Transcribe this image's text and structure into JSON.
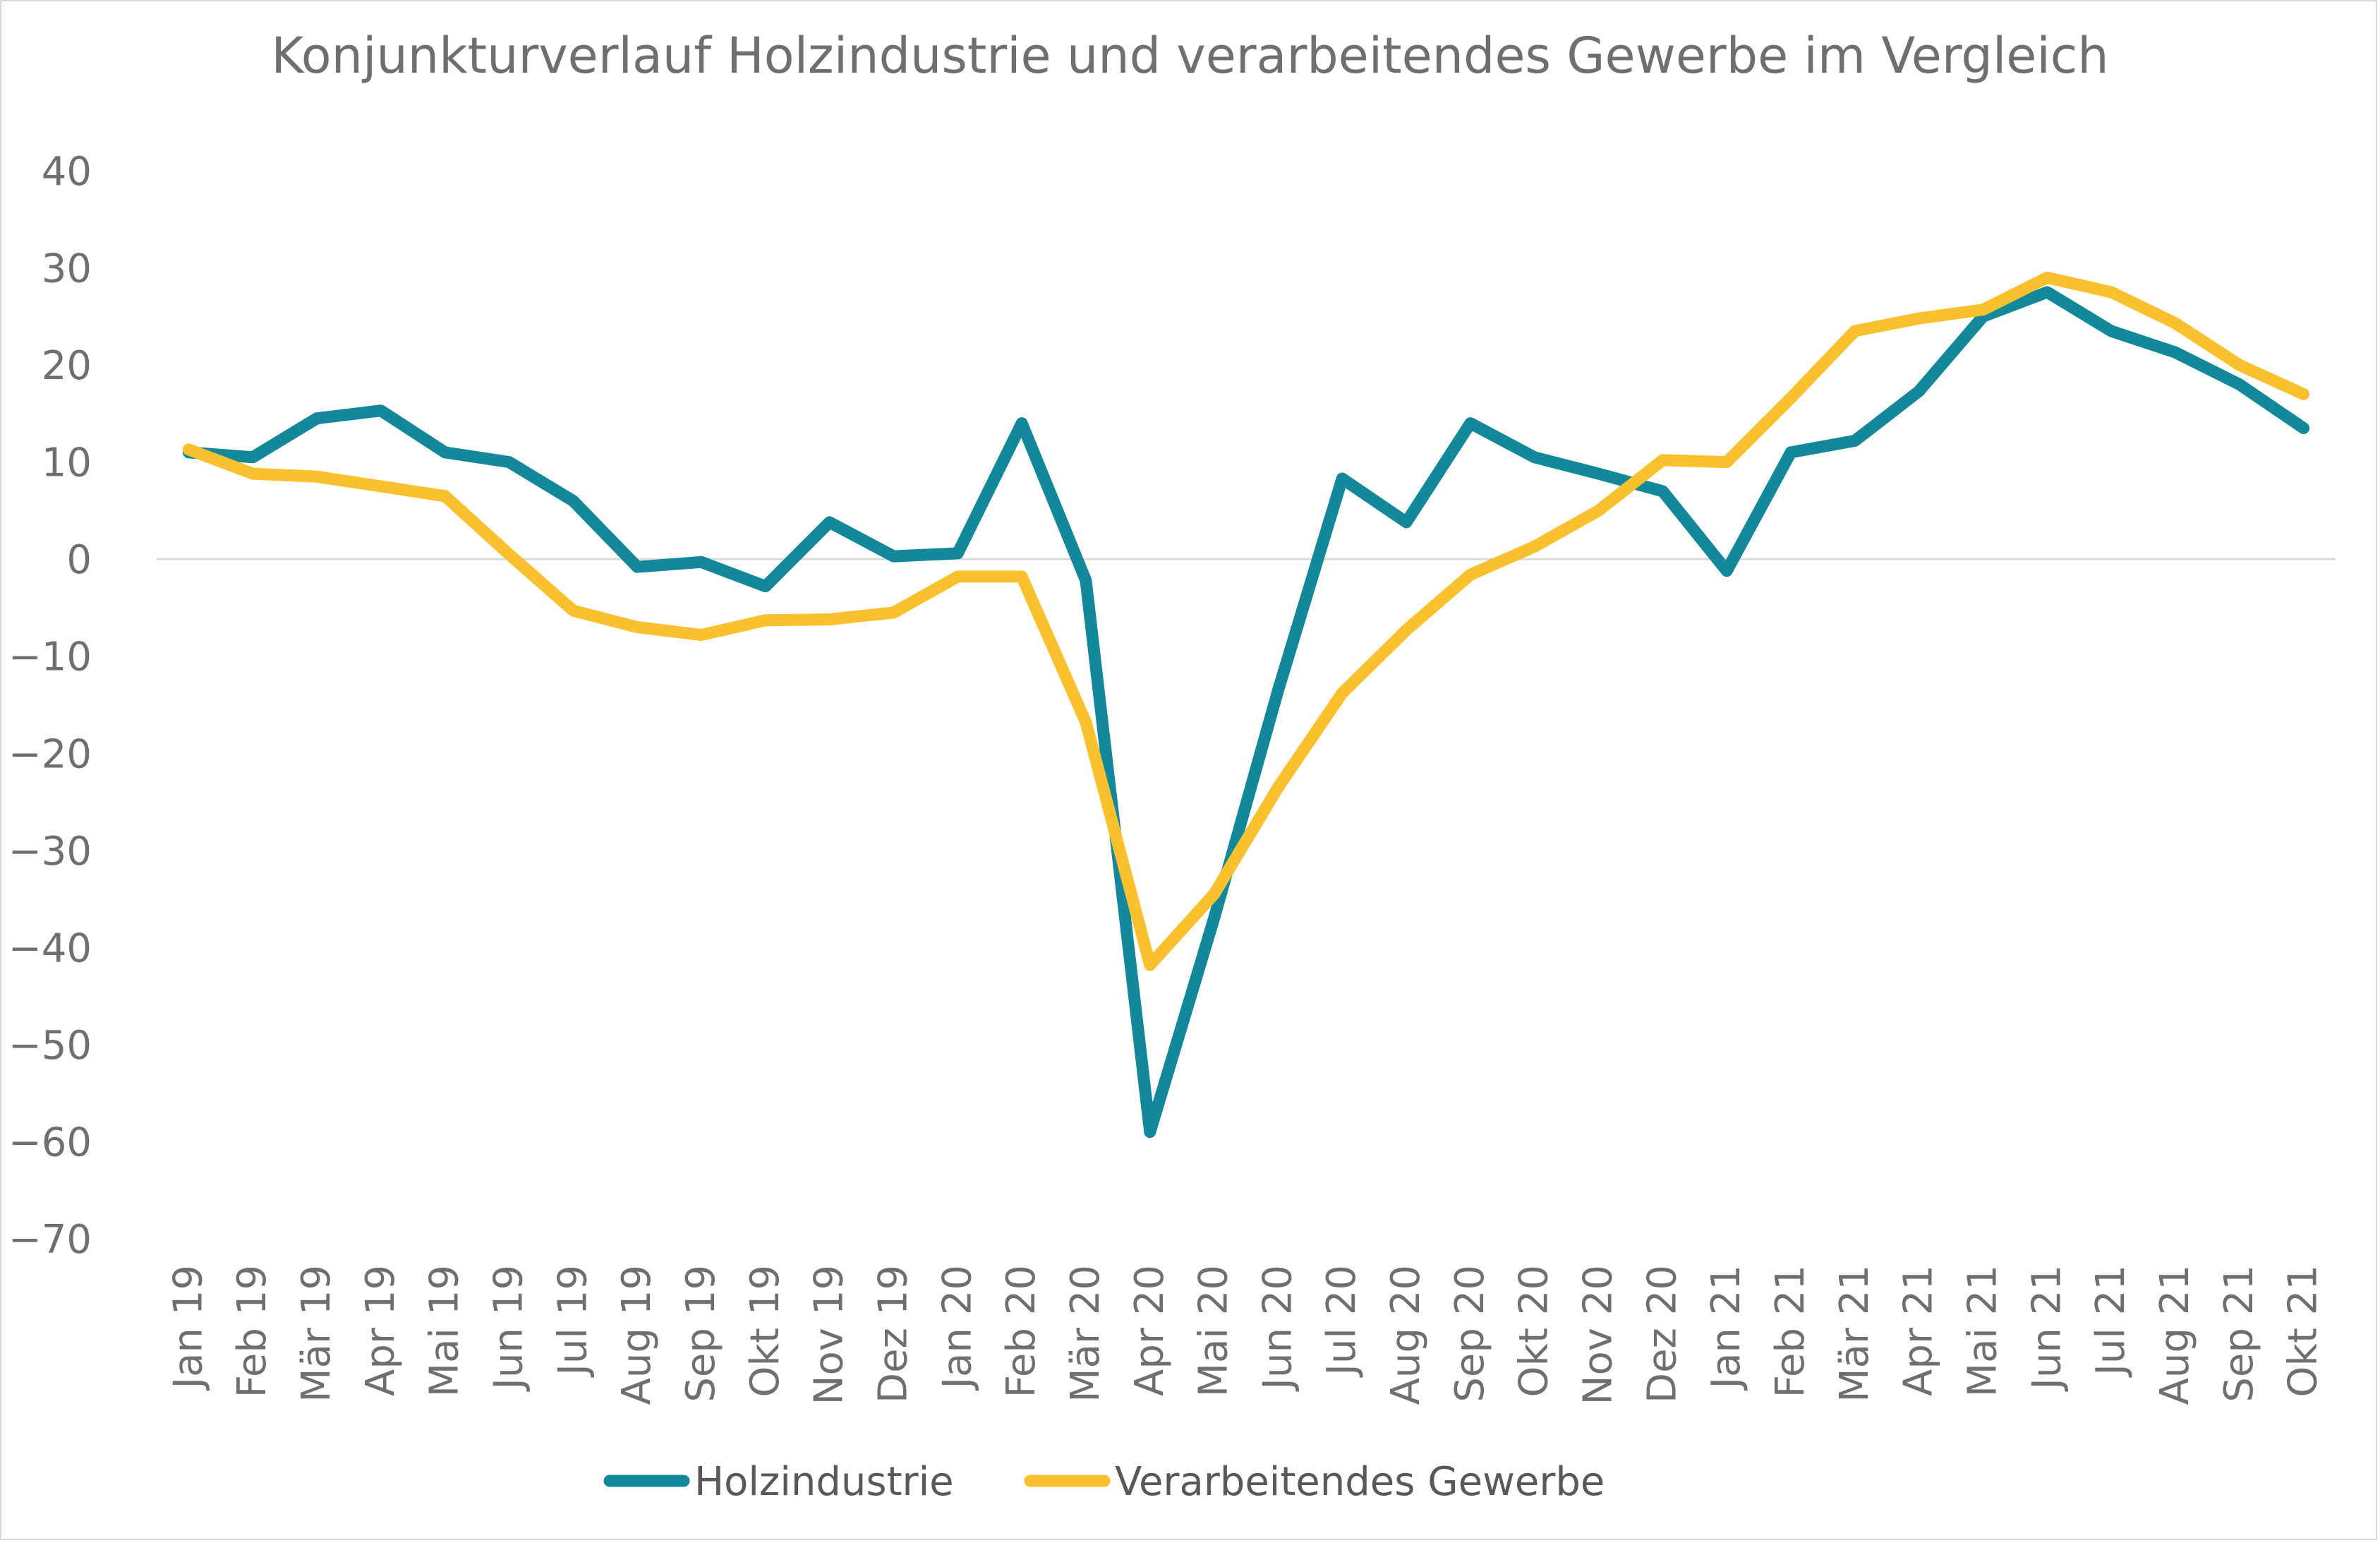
{
  "chart_data": {
    "type": "line",
    "title": "Konjunkturverlauf Holzindustrie und verarbeitendes Gewerbe im Vergleich",
    "xlabel": "",
    "ylabel": "",
    "ylim": [
      -70,
      40
    ],
    "yticks": [
      40,
      30,
      20,
      10,
      0,
      -10,
      -20,
      -30,
      -40,
      -50,
      -60,
      -70
    ],
    "grid": false,
    "zero_line": true,
    "legend_position": "bottom",
    "categories": [
      "Jan 19",
      "Feb 19",
      "Mär 19",
      "Apr 19",
      "Mai 19",
      "Jun 19",
      "Jul 19",
      "Aug 19",
      "Sep 19",
      "Okt 19",
      "Nov 19",
      "Dez 19",
      "Jan 20",
      "Feb 20",
      "Mär 20",
      "Apr 20",
      "Mai 20",
      "Jun 20",
      "Jul 20",
      "Aug 20",
      "Sep 20",
      "Okt 20",
      "Nov 20",
      "Dez 20",
      "Jan 21",
      "Feb 21",
      "Mär 21",
      "Apr 21",
      "Mai 21",
      "Jun 21",
      "Jul 21",
      "Aug 21",
      "Sep 21",
      "Okt 21"
    ],
    "series": [
      {
        "name": "Holzindustrie",
        "color": "#13889a",
        "values": [
          11,
          10.5,
          14.5,
          15.3,
          11,
          10,
          6,
          -0.8,
          -0.3,
          -2.8,
          3.8,
          0.3,
          0.6,
          14,
          -2.2,
          -59,
          -37,
          -13.5,
          8.3,
          3.8,
          14,
          10.5,
          8.8,
          7,
          -1.2,
          11,
          12.2,
          17.3,
          25,
          27.5,
          23.5,
          21.3,
          18,
          13.5
        ]
      },
      {
        "name": "Verarbeitendes Gewerbe",
        "color": "#fbc02d",
        "values": [
          11.3,
          8.8,
          8.5,
          7.5,
          6.5,
          0.5,
          -5.3,
          -7,
          -7.8,
          -6.3,
          -6.2,
          -5.5,
          -1.8,
          -1.8,
          -16.8,
          -41.8,
          -34.5,
          -23.5,
          -13.8,
          -7.3,
          -1.6,
          1.3,
          5,
          10.2,
          10,
          16.6,
          23.5,
          24.8,
          25.7,
          29,
          27.5,
          24.3,
          20,
          17
        ]
      }
    ]
  }
}
